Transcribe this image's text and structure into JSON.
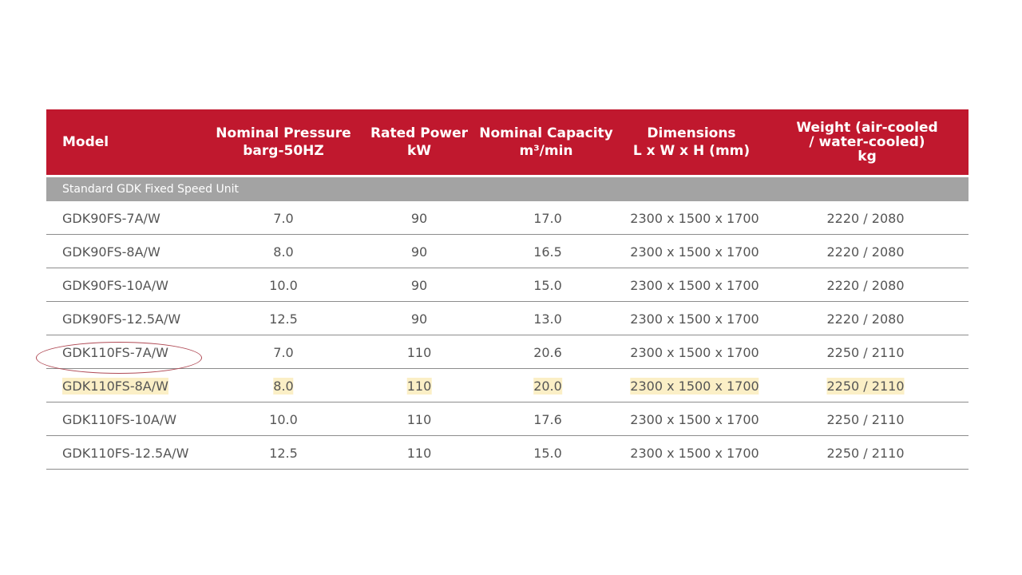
{
  "table": {
    "headers": {
      "model": [
        "Model"
      ],
      "pressure": [
        "Nominal Pressure",
        "barg-50HZ"
      ],
      "power": [
        "Rated Power",
        "kW"
      ],
      "capacity": [
        "Nominal Capacity",
        "m³/min"
      ],
      "dimensions": [
        "Dimensions",
        "L x W x H (mm)"
      ],
      "weight": [
        "Weight (air-cooled",
        "/ water-cooled)",
        "kg"
      ]
    },
    "section_label": "Standard GDK Fixed Speed Unit",
    "rows": [
      {
        "model": "GDK90FS-7A/W",
        "pressure": "7.0",
        "power": "90",
        "capacity": "17.0",
        "dimensions": "2300 x 1500 x 1700",
        "weight": "2220 / 2080"
      },
      {
        "model": "GDK90FS-8A/W",
        "pressure": "8.0",
        "power": "90",
        "capacity": "16.5",
        "dimensions": "2300 x 1500 x 1700",
        "weight": "2220 / 2080"
      },
      {
        "model": "GDK90FS-10A/W",
        "pressure": "10.0",
        "power": "90",
        "capacity": "15.0",
        "dimensions": "2300 x 1500 x 1700",
        "weight": "2220 / 2080"
      },
      {
        "model": "GDK90FS-12.5A/W",
        "pressure": "12.5",
        "power": "90",
        "capacity": "13.0",
        "dimensions": "2300 x 1500 x 1700",
        "weight": "2220 / 2080"
      },
      {
        "model": "GDK110FS-7A/W",
        "pressure": "7.0",
        "power": "110",
        "capacity": "20.6",
        "dimensions": "2300 x 1500 x 1700",
        "weight": "2250 / 2110"
      },
      {
        "model": "GDK110FS-8A/W",
        "pressure": "8.0",
        "power": "110",
        "capacity": "20.0",
        "dimensions": "2300 x 1500 x 1700",
        "weight": "2250 / 2110"
      },
      {
        "model": "GDK110FS-10A/W",
        "pressure": "10.0",
        "power": "110",
        "capacity": "17.6",
        "dimensions": "2300 x 1500 x 1700",
        "weight": "2250 / 2110"
      },
      {
        "model": "GDK110FS-12.5A/W",
        "pressure": "12.5",
        "power": "110",
        "capacity": "15.0",
        "dimensions": "2300 x 1500 x 1700",
        "weight": "2250 / 2110"
      }
    ]
  },
  "colors": {
    "header_bg": "#c0182e",
    "section_bg": "#a3a3a3",
    "highlight_bg": "#fbefc6",
    "circle_mark": "#b04a55"
  }
}
